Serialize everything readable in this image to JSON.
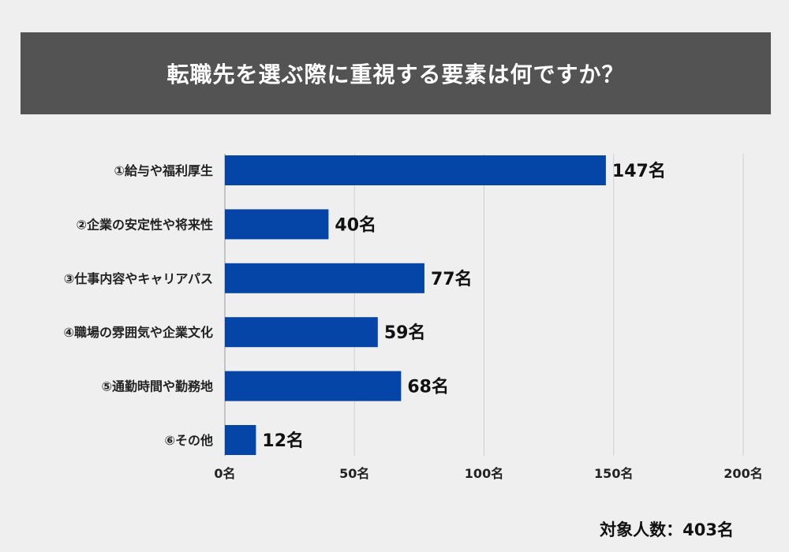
{
  "title": "転職先を選ぶ際に重視する要素は何ですか？",
  "footnote": "対象人数：403名",
  "colors": {
    "bar": "#0645a8",
    "title_bg": "#535353",
    "grid": "#cfcfcf",
    "background": "#efefef"
  },
  "chart_data": {
    "type": "bar",
    "orientation": "horizontal",
    "title": "転職先を選ぶ際に重視する要素は何ですか？",
    "categories": [
      "①給与や福利厚生",
      "②企業の安定性や将来性",
      "③仕事内容やキャリアパス",
      "④職場の雰囲気や企業文化",
      "⑤通勤時間や勤務地",
      "⑥その他"
    ],
    "values": [
      147,
      40,
      77,
      59,
      68,
      12
    ],
    "value_labels": [
      "147名",
      "40名",
      "77名",
      "59名",
      "68名",
      "12名"
    ],
    "ticks": [
      0,
      50,
      100,
      150,
      200
    ],
    "tick_labels": [
      "0名",
      "50名",
      "100名",
      "150名",
      "200名"
    ],
    "xlim": [
      0,
      200
    ],
    "grid": true,
    "legend": "none"
  }
}
